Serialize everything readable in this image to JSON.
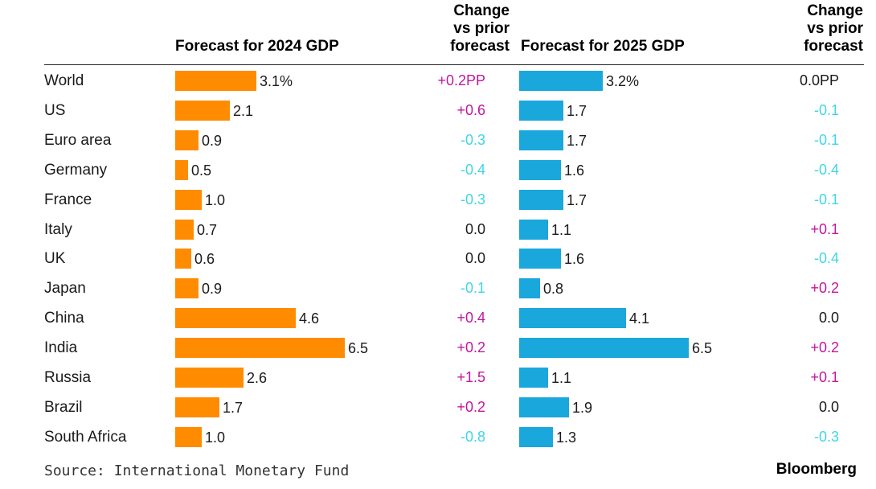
{
  "headers": {
    "gdp_2024": "Forecast for 2024 GDP",
    "change_2024": [
      "Change",
      "vs prior",
      "forecast"
    ],
    "gdp_2025": "Forecast for 2025 GDP",
    "change_2025": [
      "Change",
      "vs prior",
      "forecast"
    ]
  },
  "chart_data": {
    "type": "bar",
    "orientation": "horizontal",
    "categories": [
      "World",
      "US",
      "Euro area",
      "Germany",
      "France",
      "Italy",
      "UK",
      "Japan",
      "China",
      "India",
      "Russia",
      "Brazil",
      "South Africa"
    ],
    "series": [
      {
        "name": "Forecast for 2024 GDP",
        "values": [
          3.1,
          2.1,
          0.9,
          0.5,
          1.0,
          0.7,
          0.6,
          0.9,
          4.6,
          6.5,
          2.6,
          1.7,
          1.0
        ],
        "labels": [
          "3.1%",
          "2.1",
          "0.9",
          "0.5",
          "1.0",
          "0.7",
          "0.6",
          "0.9",
          "4.6",
          "6.5",
          "2.6",
          "1.7",
          "1.0"
        ],
        "color": "#ff8c00"
      },
      {
        "name": "Forecast for 2025 GDP",
        "values": [
          3.2,
          1.7,
          1.7,
          1.6,
          1.7,
          1.1,
          1.6,
          0.8,
          4.1,
          6.5,
          1.1,
          1.9,
          1.3
        ],
        "labels": [
          "3.2%",
          "1.7",
          "1.7",
          "1.6",
          "1.7",
          "1.1",
          "1.6",
          "0.8",
          "4.1",
          "6.5",
          "1.1",
          "1.9",
          "1.3"
        ],
        "color": "#1aa7dc"
      }
    ],
    "change_2024": [
      "+0.2PP",
      "+0.6",
      "-0.3",
      "-0.4",
      "-0.3",
      "0.0",
      "0.0",
      "-0.1",
      "+0.4",
      "+0.2",
      "+1.5",
      "+0.2",
      "-0.8"
    ],
    "change_2025": [
      "0.0PP",
      "-0.1",
      "-0.1",
      "-0.4",
      "-0.1",
      "+0.1",
      "-0.4",
      "+0.2",
      "0.0",
      "+0.2",
      "+0.1",
      "0.0",
      "-0.3"
    ],
    "change_colors": {
      "positive": "#c2179c",
      "negative": "#3fd6e6",
      "neutral": "#1a1a1a"
    }
  },
  "footer": {
    "source": "Source: International Monetary Fund",
    "brand": "Bloomberg"
  }
}
